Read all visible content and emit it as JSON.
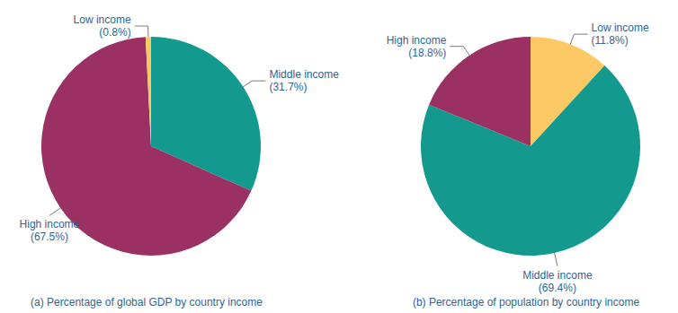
{
  "chart_data": [
    {
      "type": "pie",
      "title": "(a) Percentage of global GDP by country income",
      "categories": [
        "Middle income",
        "High income",
        "Low income"
      ],
      "values": [
        31.7,
        67.5,
        0.8
      ],
      "value_labels": [
        "(31.7%)",
        "(67.5%)",
        "(0.8%)"
      ],
      "colors": [
        "#14998e",
        "#9b3163",
        "#fdc965"
      ],
      "data_labels": true
    },
    {
      "type": "pie",
      "title": "(b) Percentage of population by country income",
      "categories": [
        "Low income",
        "Middle income",
        "High income"
      ],
      "values": [
        11.8,
        69.4,
        18.8
      ],
      "value_labels": [
        "(11.8%)",
        "(69.4%)",
        "(18.8%)"
      ],
      "colors": [
        "#fdc965",
        "#14998e",
        "#9b3163"
      ],
      "data_labels": true
    }
  ]
}
